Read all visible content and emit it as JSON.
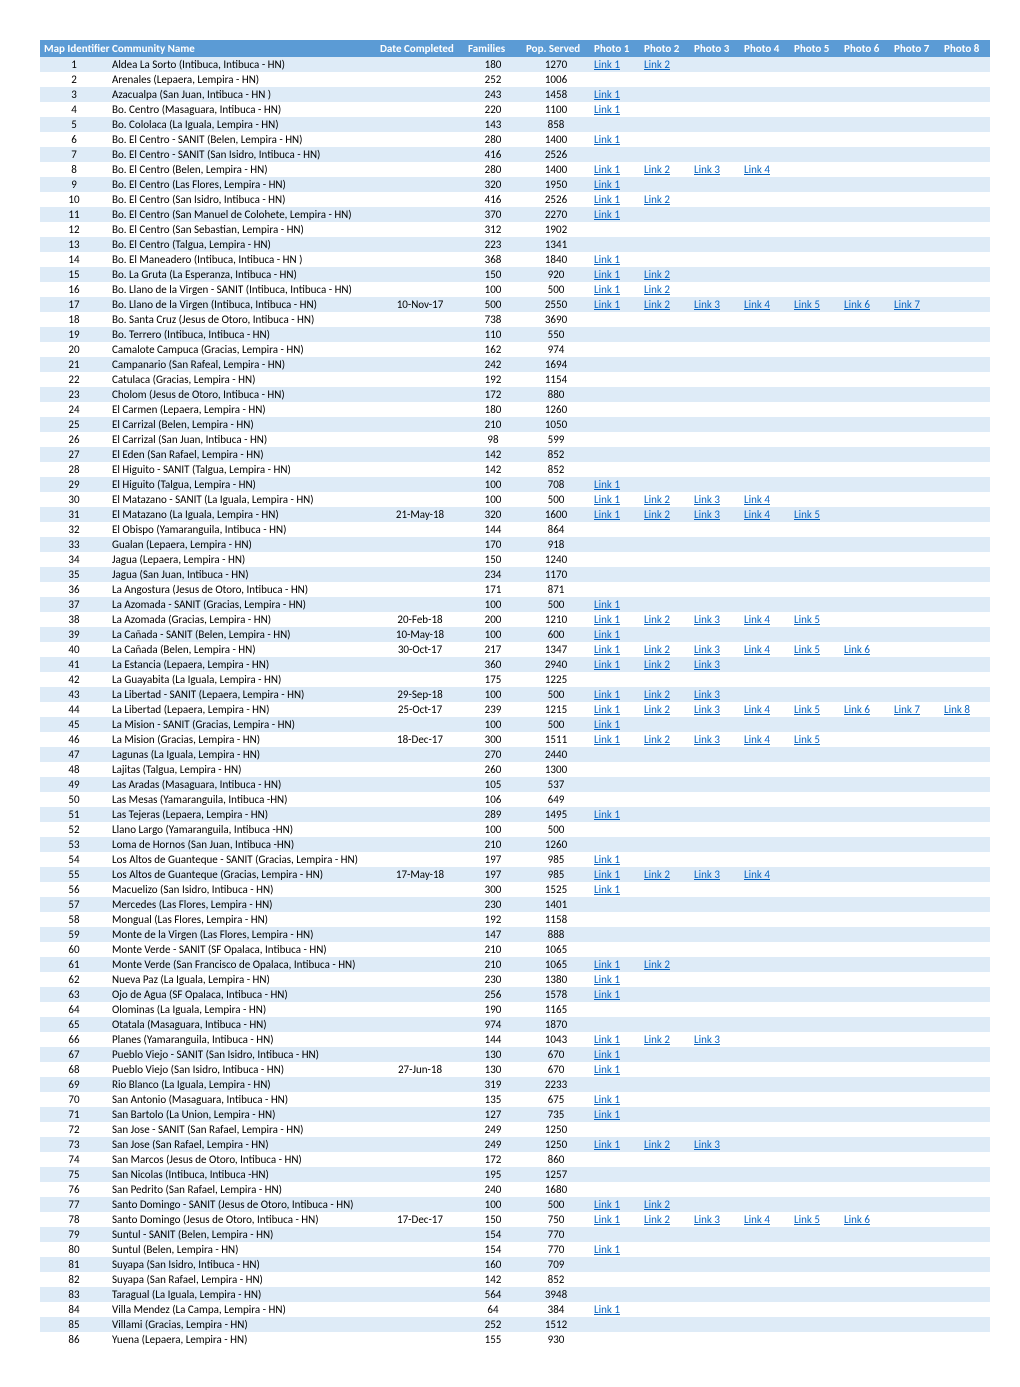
{
  "headers": {
    "map_id": "Map Identifier",
    "community": "Community Name",
    "date": "Date Completed",
    "families": "Families",
    "pop": "Pop. Served",
    "photos": [
      "Photo 1",
      "Photo 2",
      "Photo 3",
      "Photo 4",
      "Photo 5",
      "Photo 6",
      "Photo 7",
      "Photo 8"
    ]
  },
  "link_label_prefix": "Link ",
  "colors": {
    "header_bg": "#5b9bd5",
    "header_fg": "#ffffff",
    "row_odd": "#deebf7",
    "row_even": "#ffffff",
    "link": "#0563c1"
  },
  "rows": [
    {
      "id": 1,
      "name": "Aldea La Sorto (Intibuca, Intibuca - HN)",
      "date": "",
      "families": 180,
      "pop": 1270,
      "links": 2
    },
    {
      "id": 2,
      "name": "Arenales (Lepaera, Lempira - HN)",
      "date": "",
      "families": 252,
      "pop": 1006,
      "links": 0
    },
    {
      "id": 3,
      "name": "Azacualpa (San Juan, Intibuca - HN )",
      "date": "",
      "families": 243,
      "pop": 1458,
      "links": 1
    },
    {
      "id": 4,
      "name": "Bo. Centro (Masaguara, Intibuca - HN)",
      "date": "",
      "families": 220,
      "pop": 1100,
      "links": 1
    },
    {
      "id": 5,
      "name": "Bo. Cololaca (La Iguala, Lempira - HN)",
      "date": "",
      "families": 143,
      "pop": 858,
      "links": 0
    },
    {
      "id": 6,
      "name": "Bo. El Centro - SANIT (Belen, Lempira - HN)",
      "date": "",
      "families": 280,
      "pop": 1400,
      "links": 1
    },
    {
      "id": 7,
      "name": "Bo. El Centro - SANIT (San Isidro, Intibuca - HN)",
      "date": "",
      "families": 416,
      "pop": 2526,
      "links": 0
    },
    {
      "id": 8,
      "name": "Bo. El Centro (Belen, Lempira - HN)",
      "date": "",
      "families": 280,
      "pop": 1400,
      "links": 4
    },
    {
      "id": 9,
      "name": "Bo. El Centro (Las Flores, Lempira - HN)",
      "date": "",
      "families": 320,
      "pop": 1950,
      "links": 1
    },
    {
      "id": 10,
      "name": "Bo. El Centro (San Isidro, Intibuca - HN)",
      "date": "",
      "families": 416,
      "pop": 2526,
      "links": 2
    },
    {
      "id": 11,
      "name": "Bo. El Centro (San Manuel de Colohete, Lempira - HN)",
      "date": "",
      "families": 370,
      "pop": 2270,
      "links": 1
    },
    {
      "id": 12,
      "name": "Bo. El Centro (San Sebastian, Lempira - HN)",
      "date": "",
      "families": 312,
      "pop": 1902,
      "links": 0
    },
    {
      "id": 13,
      "name": "Bo. El Centro (Talgua, Lempira - HN)",
      "date": "",
      "families": 223,
      "pop": 1341,
      "links": 0
    },
    {
      "id": 14,
      "name": "Bo. El Maneadero (Intibuca, Intibuca - HN )",
      "date": "",
      "families": 368,
      "pop": 1840,
      "links": 1
    },
    {
      "id": 15,
      "name": "Bo. La Gruta (La Esperanza, Intibuca - HN)",
      "date": "",
      "families": 150,
      "pop": 920,
      "links": 2
    },
    {
      "id": 16,
      "name": "Bo. Llano de la Virgen - SANIT (Intibuca, Intibuca - HN)",
      "date": "",
      "families": 100,
      "pop": 500,
      "links": 2
    },
    {
      "id": 17,
      "name": "Bo. Llano de la Virgen (Intibuca, Intibuca - HN)",
      "date": "10-Nov-17",
      "families": 500,
      "pop": 2550,
      "links": 7
    },
    {
      "id": 18,
      "name": "Bo. Santa Cruz (Jesus de Otoro, Intibuca - HN)",
      "date": "",
      "families": 738,
      "pop": 3690,
      "links": 0
    },
    {
      "id": 19,
      "name": "Bo. Terrero (Intibuca, Intibuca - HN)",
      "date": "",
      "families": 110,
      "pop": 550,
      "links": 0
    },
    {
      "id": 20,
      "name": "Camalote Campuca (Gracias, Lempira - HN)",
      "date": "",
      "families": 162,
      "pop": 974,
      "links": 0
    },
    {
      "id": 21,
      "name": "Campanario (San Rafeal, Lempira - HN)",
      "date": "",
      "families": 242,
      "pop": 1694,
      "links": 0
    },
    {
      "id": 22,
      "name": "Catulaca (Gracias, Lempira - HN)",
      "date": "",
      "families": 192,
      "pop": 1154,
      "links": 0
    },
    {
      "id": 23,
      "name": "Cholom (Jesus de Otoro, Intibuca - HN)",
      "date": "",
      "families": 172,
      "pop": 880,
      "links": 0
    },
    {
      "id": 24,
      "name": "El Carmen (Lepaera, Lempira - HN)",
      "date": "",
      "families": 180,
      "pop": 1260,
      "links": 0
    },
    {
      "id": 25,
      "name": "El Carrizal (Belen, Lempira - HN)",
      "date": "",
      "families": 210,
      "pop": 1050,
      "links": 0
    },
    {
      "id": 26,
      "name": "El Carrizal (San Juan, Intibuca - HN)",
      "date": "",
      "families": 98,
      "pop": 599,
      "links": 0
    },
    {
      "id": 27,
      "name": "El Eden (San Rafael, Lempira - HN)",
      "date": "",
      "families": 142,
      "pop": 852,
      "links": 0
    },
    {
      "id": 28,
      "name": "El Higuito - SANIT (Talgua, Lempira - HN)",
      "date": "",
      "families": 142,
      "pop": 852,
      "links": 0
    },
    {
      "id": 29,
      "name": "El Higuito (Talgua, Lempira - HN)",
      "date": "",
      "families": 100,
      "pop": 708,
      "links": 1
    },
    {
      "id": 30,
      "name": "El Matazano - SANIT (La Iguala, Lempira - HN)",
      "date": "",
      "families": 100,
      "pop": 500,
      "links": 4
    },
    {
      "id": 31,
      "name": "El Matazano (La Iguala, Lempira - HN)",
      "date": "21-May-18",
      "families": 320,
      "pop": 1600,
      "links": 5
    },
    {
      "id": 32,
      "name": "El Obispo (Yamaranguila, Intibuca - HN)",
      "date": "",
      "families": 144,
      "pop": 864,
      "links": 0
    },
    {
      "id": 33,
      "name": "Gualan (Lepaera, Lempira - HN)",
      "date": "",
      "families": 170,
      "pop": 918,
      "links": 0
    },
    {
      "id": 34,
      "name": "Jagua (Lepaera, Lempira - HN)",
      "date": "",
      "families": 150,
      "pop": 1240,
      "links": 0
    },
    {
      "id": 35,
      "name": "Jagua (San Juan, Intibuca - HN)",
      "date": "",
      "families": 234,
      "pop": 1170,
      "links": 0
    },
    {
      "id": 36,
      "name": "La Angostura (Jesus de Otoro, Intibuca - HN)",
      "date": "",
      "families": 171,
      "pop": 871,
      "links": 0
    },
    {
      "id": 37,
      "name": "La Azomada - SANIT (Gracias, Lempira - HN)",
      "date": "",
      "families": 100,
      "pop": 500,
      "links": 1
    },
    {
      "id": 38,
      "name": "La Azomada (Gracias, Lempira - HN)",
      "date": "20-Feb-18",
      "families": 200,
      "pop": 1210,
      "links": 5
    },
    {
      "id": 39,
      "name": "La Cañada - SANIT (Belen, Lempira - HN)",
      "date": "10-May-18",
      "families": 100,
      "pop": 600,
      "links": 1
    },
    {
      "id": 40,
      "name": "La Cañada (Belen, Lempira - HN)",
      "date": "30-Oct-17",
      "families": 217,
      "pop": 1347,
      "links": 6
    },
    {
      "id": 41,
      "name": "La Estancia (Lepaera, Lempira - HN)",
      "date": "",
      "families": 360,
      "pop": 2940,
      "links": 3
    },
    {
      "id": 42,
      "name": "La Guayabita (La Iguala, Lempira - HN)",
      "date": "",
      "families": 175,
      "pop": 1225,
      "links": 0
    },
    {
      "id": 43,
      "name": "La Libertad - SANIT (Lepaera, Lempira - HN)",
      "date": "29-Sep-18",
      "families": 100,
      "pop": 500,
      "links": 3
    },
    {
      "id": 44,
      "name": "La Libertad (Lepaera, Lempira - HN)",
      "date": "25-Oct-17",
      "families": 239,
      "pop": 1215,
      "links": 8
    },
    {
      "id": 45,
      "name": "La Mision - SANIT (Gracias, Lempira - HN)",
      "date": "",
      "families": 100,
      "pop": 500,
      "links": 1
    },
    {
      "id": 46,
      "name": "La Mision (Gracias, Lempira - HN)",
      "date": "18-Dec-17",
      "families": 300,
      "pop": 1511,
      "links": 5
    },
    {
      "id": 47,
      "name": "Lagunas (La Iguala, Lempira - HN)",
      "date": "",
      "families": 270,
      "pop": 2440,
      "links": 0
    },
    {
      "id": 48,
      "name": "Lajitas (Talgua, Lempira - HN)",
      "date": "",
      "families": 260,
      "pop": 1300,
      "links": 0
    },
    {
      "id": 49,
      "name": "Las Aradas (Masaguara, Intibuca - HN)",
      "date": "",
      "families": 105,
      "pop": 537,
      "links": 0
    },
    {
      "id": 50,
      "name": "Las Mesas (Yamaranguila, Intibuca -HN)",
      "date": "",
      "families": 106,
      "pop": 649,
      "links": 0
    },
    {
      "id": 51,
      "name": "Las Tejeras (Lepaera, Lempira - HN)",
      "date": "",
      "families": 289,
      "pop": 1495,
      "links": 1
    },
    {
      "id": 52,
      "name": "Llano Largo (Yamaranguila, Intibuca -HN)",
      "date": "",
      "families": 100,
      "pop": 500,
      "links": 0
    },
    {
      "id": 53,
      "name": "Loma de Hornos (San Juan, Intibuca -HN)",
      "date": "",
      "families": 210,
      "pop": 1260,
      "links": 0
    },
    {
      "id": 54,
      "name": "Los Altos de Guanteque - SANIT (Gracias, Lempira - HN)",
      "date": "",
      "families": 197,
      "pop": 985,
      "links": 1
    },
    {
      "id": 55,
      "name": "Los Altos de Guanteque (Gracias, Lempira - HN)",
      "date": "17-May-18",
      "families": 197,
      "pop": 985,
      "links": 4
    },
    {
      "id": 56,
      "name": "Macuelizo (San Isidro, Intibuca - HN)",
      "date": "",
      "families": 300,
      "pop": 1525,
      "links": 1
    },
    {
      "id": 57,
      "name": "Mercedes (Las Flores, Lempira - HN)",
      "date": "",
      "families": 230,
      "pop": 1401,
      "links": 0
    },
    {
      "id": 58,
      "name": "Mongual (Las Flores, Lempira - HN)",
      "date": "",
      "families": 192,
      "pop": 1158,
      "links": 0
    },
    {
      "id": 59,
      "name": "Monte de la Virgen (Las Flores, Lempira - HN)",
      "date": "",
      "families": 147,
      "pop": 888,
      "links": 0
    },
    {
      "id": 60,
      "name": "Monte Verde - SANIT (SF Opalaca, Intibuca - HN)",
      "date": "",
      "families": 210,
      "pop": 1065,
      "links": 0
    },
    {
      "id": 61,
      "name": "Monte Verde (San Francisco de Opalaca, Intibuca - HN)",
      "date": "",
      "families": 210,
      "pop": 1065,
      "links": 2
    },
    {
      "id": 62,
      "name": "Nueva Paz (La Iguala, Lempira - HN)",
      "date": "",
      "families": 230,
      "pop": 1380,
      "links": 1
    },
    {
      "id": 63,
      "name": "Ojo de Agua (SF Opalaca, Intibuca - HN)",
      "date": "",
      "families": 256,
      "pop": 1578,
      "links": 1
    },
    {
      "id": 64,
      "name": "Olominas (La Iguala, Lempira - HN)",
      "date": "",
      "families": 190,
      "pop": 1165,
      "links": 0
    },
    {
      "id": 65,
      "name": "Otatala (Masaguara, Intibuca - HN)",
      "date": "",
      "families": 974,
      "pop": 1870,
      "links": 0
    },
    {
      "id": 66,
      "name": "Planes (Yamaranguila, Intibuca - HN)",
      "date": "",
      "families": 144,
      "pop": 1043,
      "links": 3
    },
    {
      "id": 67,
      "name": "Pueblo Viejo - SANIT (San Isidro, Intibuca - HN)",
      "date": "",
      "families": 130,
      "pop": 670,
      "links": 1
    },
    {
      "id": 68,
      "name": "Pueblo Viejo (San Isidro, Intibuca - HN)",
      "date": "27-Jun-18",
      "families": 130,
      "pop": 670,
      "links": 1
    },
    {
      "id": 69,
      "name": "Rio Blanco (La Iguala, Lempira - HN)",
      "date": "",
      "families": 319,
      "pop": 2233,
      "links": 0
    },
    {
      "id": 70,
      "name": "San Antonio (Masaguara, Intibuca - HN)",
      "date": "",
      "families": 135,
      "pop": 675,
      "links": 1
    },
    {
      "id": 71,
      "name": "San Bartolo (La Union, Lempira - HN)",
      "date": "",
      "families": 127,
      "pop": 735,
      "links": 1
    },
    {
      "id": 72,
      "name": "San Jose - SANIT (San Rafael, Lempira - HN)",
      "date": "",
      "families": 249,
      "pop": 1250,
      "links": 0
    },
    {
      "id": 73,
      "name": "San Jose (San Rafael, Lempira - HN)",
      "date": "",
      "families": 249,
      "pop": 1250,
      "links": 3
    },
    {
      "id": 74,
      "name": "San Marcos (Jesus de Otoro, Intibuca - HN)",
      "date": "",
      "families": 172,
      "pop": 860,
      "links": 0
    },
    {
      "id": 75,
      "name": "San Nicolas (Intibuca, Intibuca -HN)",
      "date": "",
      "families": 195,
      "pop": 1257,
      "links": 0
    },
    {
      "id": 76,
      "name": "San Pedrito (San Rafael, Lempira - HN)",
      "date": "",
      "families": 240,
      "pop": 1680,
      "links": 0
    },
    {
      "id": 77,
      "name": "Santo Domingo - SANIT (Jesus de Otoro, Intibuca - HN)",
      "date": "",
      "families": 100,
      "pop": 500,
      "links": 2
    },
    {
      "id": 78,
      "name": "Santo Domingo (Jesus de Otoro, Intibuca - HN)",
      "date": "17-Dec-17",
      "families": 150,
      "pop": 750,
      "links": 6
    },
    {
      "id": 79,
      "name": "Suntul - SANIT (Belen, Lempira - HN)",
      "date": "",
      "families": 154,
      "pop": 770,
      "links": 0
    },
    {
      "id": 80,
      "name": "Suntul (Belen, Lempira - HN)",
      "date": "",
      "families": 154,
      "pop": 770,
      "links": 1
    },
    {
      "id": 81,
      "name": "Suyapa (San Isidro, Intibuca - HN)",
      "date": "",
      "families": 160,
      "pop": 709,
      "links": 0
    },
    {
      "id": 82,
      "name": "Suyapa (San Rafael, Lempira - HN)",
      "date": "",
      "families": 142,
      "pop": 852,
      "links": 0
    },
    {
      "id": 83,
      "name": "Taragual (La Iguala, Lempira - HN)",
      "date": "",
      "families": 564,
      "pop": 3948,
      "links": 0
    },
    {
      "id": 84,
      "name": "Villa Mendez (La Campa, Lempira - HN)",
      "date": "",
      "families": 64,
      "pop": 384,
      "links": 1
    },
    {
      "id": 85,
      "name": "Villami (Gracias, Lempira - HN)",
      "date": "",
      "families": 252,
      "pop": 1512,
      "links": 0
    },
    {
      "id": 86,
      "name": "Yuena (Lepaera, Lempira - HN)",
      "date": "",
      "families": 155,
      "pop": 930,
      "links": 0
    }
  ]
}
